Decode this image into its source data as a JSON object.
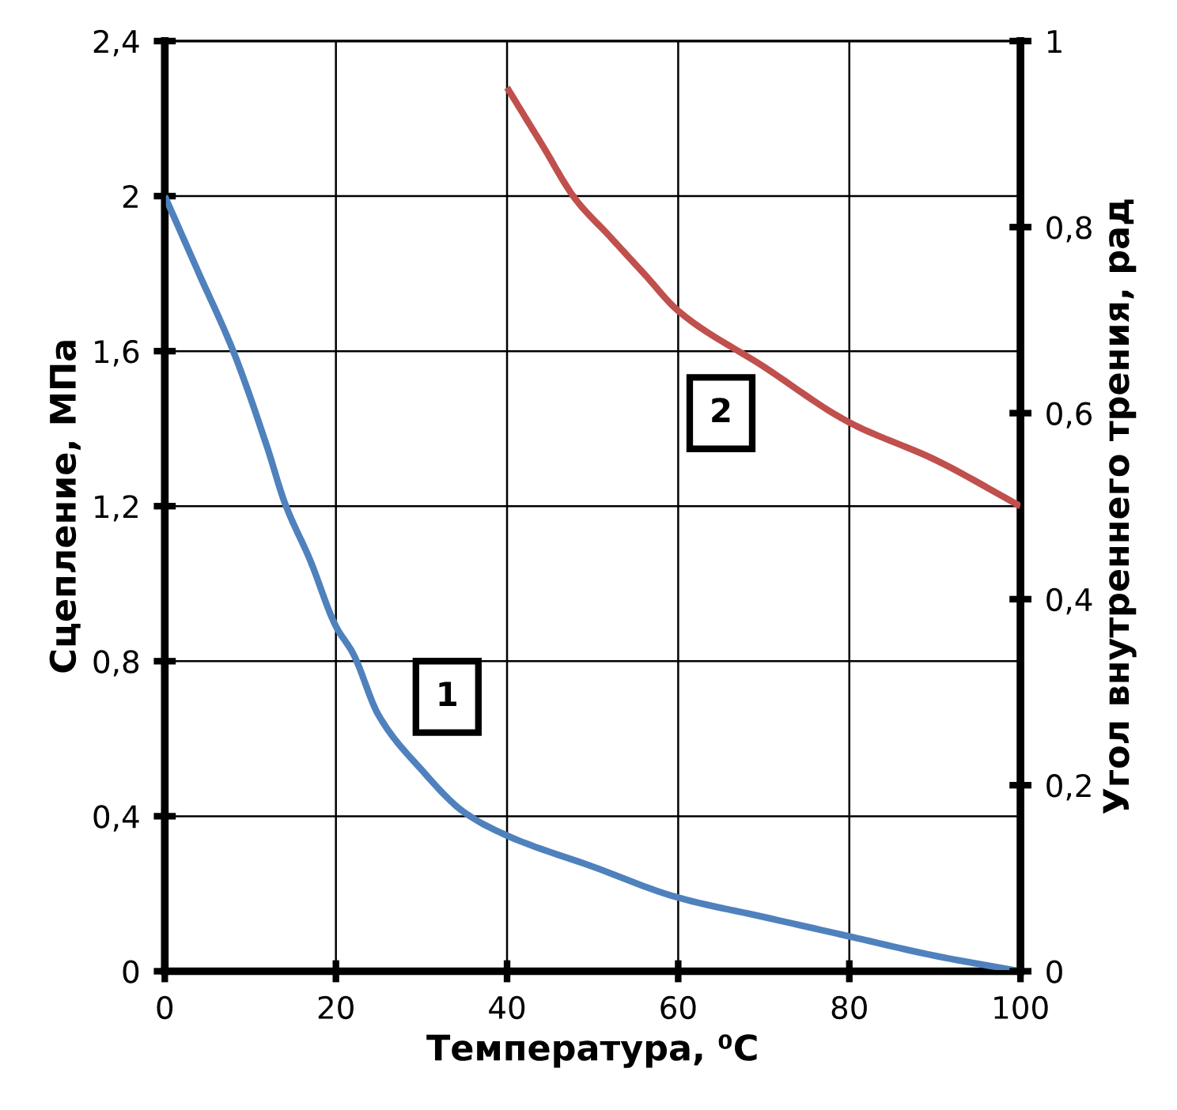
{
  "chart_data": {
    "type": "line",
    "xlabel": "Температура, ⁰C",
    "ylabel": "Сцепление, МПа",
    "y2label": "Угол внутреннего трения, рад",
    "xlim": [
      0,
      100
    ],
    "xticks": [
      0,
      20,
      40,
      60,
      80,
      100
    ],
    "ylim": [
      0,
      2.4
    ],
    "yticks": [
      0,
      {
        "value": 0.4,
        "label": "0,4"
      },
      {
        "value": 0.8,
        "label": "0,8"
      },
      {
        "value": 1.2,
        "label": "1,2"
      },
      {
        "value": 1.6,
        "label": "1,6"
      },
      2,
      {
        "value": 2.4,
        "label": "2,4"
      }
    ],
    "y2lim": [
      0,
      1
    ],
    "y2ticks": [
      0,
      {
        "value": 0.2,
        "label": "0,2"
      },
      {
        "value": 0.4,
        "label": "0,4"
      },
      {
        "value": 0.6,
        "label": "0,6"
      },
      {
        "value": 0.8,
        "label": "0,8"
      },
      1
    ],
    "grid": true,
    "legend": false,
    "marker": "none",
    "line_style": "solid",
    "series": [
      {
        "color": "#4f81bd",
        "x": [
          0,
          4,
          8,
          12,
          14,
          17,
          20,
          22,
          25,
          30,
          35,
          40,
          50,
          60,
          70,
          80,
          90,
          100
        ],
        "values": [
          2.0,
          1.8,
          1.6,
          1.35,
          1.21,
          1.06,
          0.89,
          0.82,
          0.66,
          0.52,
          0.41,
          0.35,
          0.27,
          0.19,
          0.14,
          0.09,
          0.04,
          0.0
        ]
      },
      {
        "color": "#c0504d",
        "axis": "y2",
        "x": [
          40,
          44,
          48,
          52,
          56,
          60,
          70,
          80,
          90,
          100
        ],
        "values": [
          0.95,
          0.89,
          0.83,
          0.79,
          0.75,
          0.71,
          0.65,
          0.59,
          0.55,
          0.5
        ]
      }
    ],
    "annotations": [
      "1",
      "2"
    ]
  }
}
